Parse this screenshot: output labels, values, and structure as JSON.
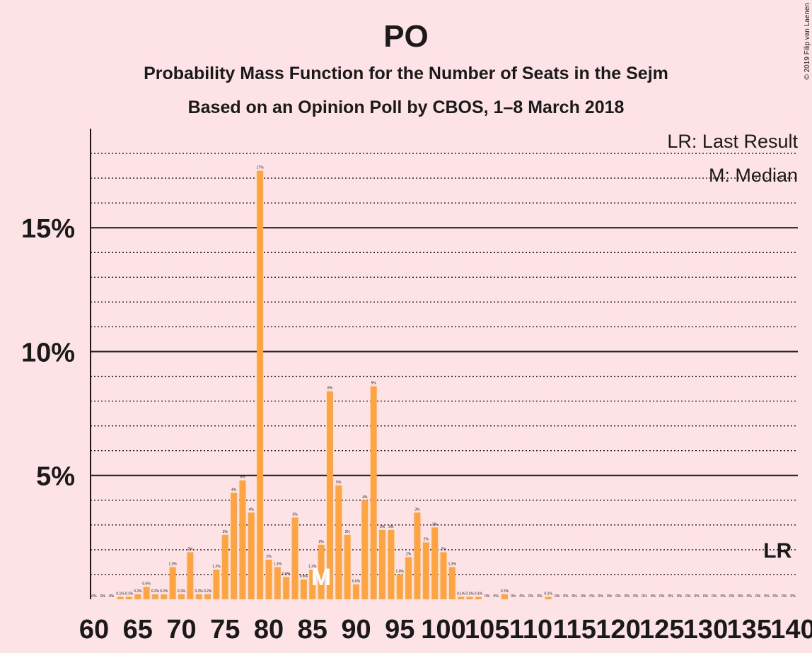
{
  "chart_data": {
    "type": "bar",
    "title": "PO",
    "subtitle": "Probability Mass Function for the Number of Seats in the Sejm",
    "subtitle2": "Based on an Opinion Poll by CBOS, 1–8 March 2018",
    "copyright": "© 2019 Filip van Laenen",
    "legend": {
      "last_result": "LR: Last Result",
      "median": "M: Median"
    },
    "lr_marker": "LR",
    "median_marker": "M",
    "median_seat": 86,
    "last_result_seat": 138,
    "bar_color": "#ffa43f",
    "x": [
      60,
      61,
      62,
      63,
      64,
      65,
      66,
      67,
      68,
      69,
      70,
      71,
      72,
      73,
      74,
      75,
      76,
      77,
      78,
      79,
      80,
      81,
      82,
      83,
      84,
      85,
      86,
      87,
      88,
      89,
      90,
      91,
      92,
      93,
      94,
      95,
      96,
      97,
      98,
      99,
      100,
      101,
      102,
      103,
      104,
      105,
      106,
      107,
      108,
      109,
      110,
      111,
      112,
      113,
      114,
      115,
      116,
      117,
      118,
      119,
      120,
      121,
      122,
      123,
      124,
      125,
      126,
      127,
      128,
      129,
      130,
      131,
      132,
      133,
      134,
      135,
      136,
      137,
      138,
      139,
      140
    ],
    "values": [
      0,
      0,
      0,
      0.1,
      0.1,
      0.2,
      0.5,
      0.2,
      0.2,
      1.3,
      0.2,
      1.9,
      0.2,
      0.2,
      1.2,
      2.6,
      4.3,
      4.8,
      3.5,
      17.3,
      1.6,
      1.3,
      0.9,
      3.3,
      0.8,
      1.2,
      2.2,
      8.4,
      4.6,
      2.6,
      0.6,
      4.0,
      8.6,
      2.8,
      2.8,
      1.0,
      1.7,
      3.5,
      2.3,
      2.9,
      1.9,
      1.3,
      0.1,
      0.1,
      0.1,
      0,
      0,
      0.2,
      0,
      0,
      0,
      0,
      0.1,
      0,
      0,
      0,
      0,
      0,
      0,
      0,
      0,
      0,
      0,
      0,
      0,
      0,
      0,
      0,
      0,
      0,
      0,
      0,
      0,
      0,
      0,
      0,
      0,
      0,
      0,
      0,
      0
    ],
    "data_labels": [
      "0%",
      "0%",
      "0%",
      "0.1%",
      "0.1%",
      "0.2%",
      "0.5%",
      "0.2%",
      "0.2%",
      "1.3%",
      "0.2%",
      "2%",
      "0.2%",
      "0.2%",
      "1.2%",
      "3%",
      "4%",
      "5%",
      "4%",
      "17%",
      "2%",
      "1.3%",
      "0.9%",
      "3%",
      "0.8%",
      "1.2%",
      "2%",
      "8%",
      "5%",
      "3%",
      "0.6%",
      "4%",
      "9%",
      "3%",
      "3%",
      "1.0%",
      "2%",
      "3%",
      "2%",
      "3%",
      "2%",
      "1.3%",
      "0.1%",
      "0.1%",
      "0.1%",
      "0%",
      "0%",
      "0.2%",
      "0%",
      "0%",
      "0%",
      "0%",
      "0.1%",
      "0%",
      "0%",
      "0%",
      "0%",
      "0%",
      "0%",
      "0%",
      "0%",
      "0%",
      "0%",
      "0%",
      "0%",
      "0%",
      "0%",
      "0%",
      "0%",
      "0%",
      "0%",
      "0%",
      "0%",
      "0%",
      "0%",
      "0%",
      "0%",
      "0%",
      "0%",
      "0%",
      "0%"
    ],
    "x_ticks": [
      "60",
      "65",
      "70",
      "75",
      "80",
      "85",
      "90",
      "95",
      "100",
      "105",
      "110",
      "115",
      "120",
      "125",
      "130",
      "135",
      "140"
    ],
    "y_ticks": [
      "5%",
      "10%",
      "15%"
    ],
    "ylim": [
      0,
      19
    ],
    "xlabel": "",
    "ylabel": ""
  }
}
